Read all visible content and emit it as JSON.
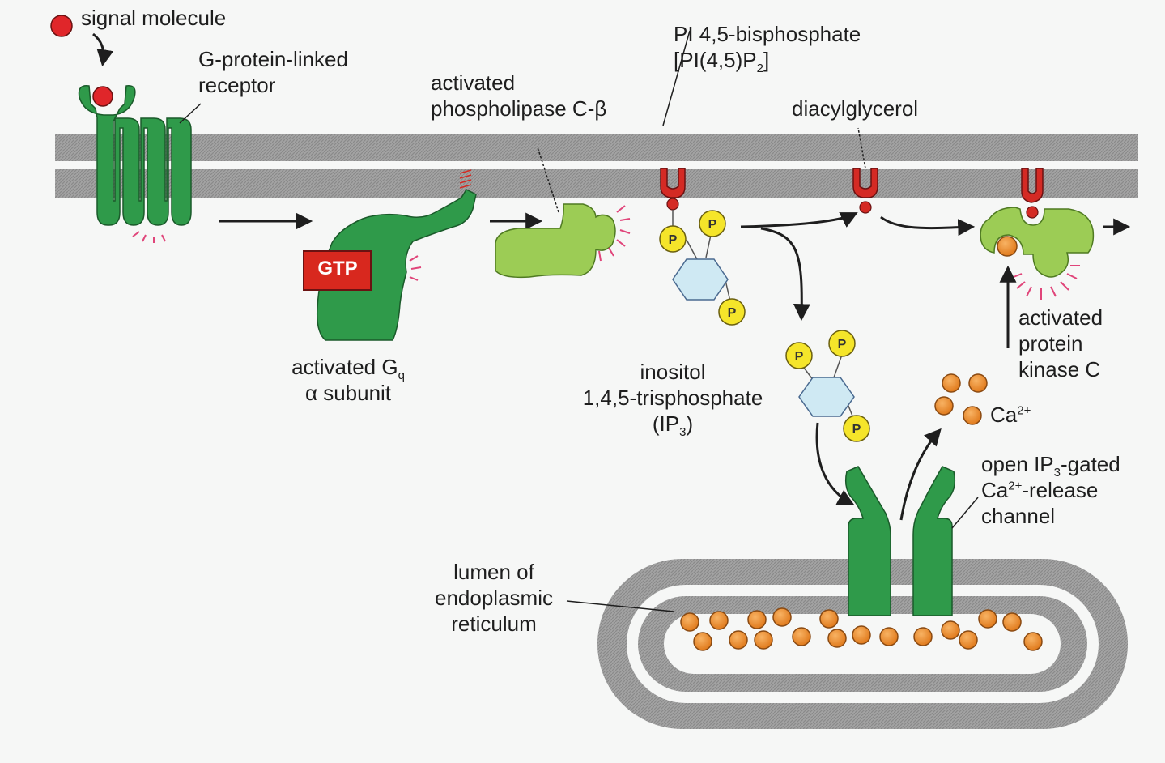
{
  "labels": {
    "signal_molecule": "signal molecule",
    "receptor": [
      "G-protein-linked",
      "receptor"
    ],
    "gq": {
      "prefix": "activated G",
      "subscript": "q",
      "line2": "α subunit"
    },
    "gtp": "GTP",
    "plc": [
      "activated",
      "phospholipase C-β"
    ],
    "pip2": {
      "line1": "PI 4,5-bisphosphate",
      "line2_pre": "[PI(4,5)P",
      "line2_sub": "2",
      "line2_post": "]"
    },
    "dag": "diacylglycerol",
    "ip3": {
      "line1": "inositol",
      "line2": "1,4,5-trisphosphate",
      "line3_pre": "(IP",
      "line3_sub": "3",
      "line3_post": ")"
    },
    "pkc": [
      "activated",
      "protein",
      "kinase C"
    ],
    "ca": {
      "base": "Ca",
      "sup": "2+"
    },
    "channel": {
      "l1_pre": "open IP",
      "l1_sub": "3",
      "l1_post": "-gated",
      "l2_pre": "Ca",
      "l2_sup": "2+",
      "l2_post": "-release",
      "l3": "channel"
    },
    "er": [
      "lumen of",
      "endoplasmic",
      "reticulum"
    ],
    "phosphate": "P"
  },
  "colors": {
    "membrane": "#9b9b9b",
    "protein_dark": "#2f9a4a",
    "protein_light": "#9ccc55",
    "signal": "#e0262a",
    "lipid_head": "#d42a24",
    "phosphate": "#f5e52a",
    "inositol_ring": "#cfe9f3",
    "calcium": "#e8892a",
    "gtp_box": "#d8281e",
    "activation_rays": "#e0457a"
  }
}
